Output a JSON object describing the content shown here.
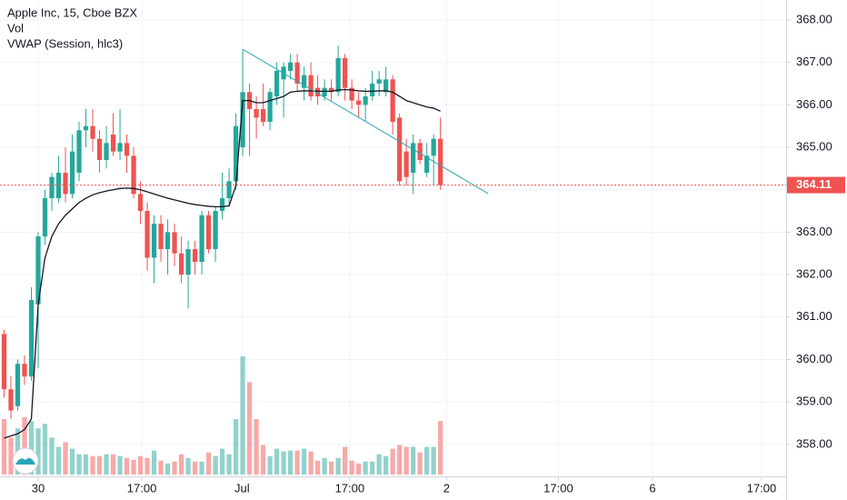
{
  "chart_data": {
    "type": "candlestick",
    "legend": [
      "Apple Inc, 15, Cboe BZX",
      "Vol",
      "VWAP (Session, hlc3)"
    ],
    "x": [
      -5,
      -4,
      -3,
      -2,
      -1,
      0,
      1,
      2,
      3,
      4,
      5,
      6,
      7,
      8,
      9,
      10,
      11,
      12,
      13,
      14,
      15,
      16,
      17,
      18,
      19,
      20,
      21,
      22,
      23,
      24,
      25,
      26,
      27,
      28,
      29,
      30,
      31,
      32,
      33,
      34,
      35,
      36,
      37,
      38,
      39,
      40,
      41,
      42,
      43,
      44,
      45,
      46,
      47,
      48,
      49,
      50,
      51,
      52,
      53,
      54,
      55,
      56,
      57,
      58,
      59
    ],
    "open": [
      360.6,
      359.3,
      358.9,
      359.9,
      359.6,
      361.3,
      362.9,
      363.8,
      363.8,
      364.4,
      363.9,
      364.4,
      365.4,
      365.5,
      365.2,
      364.7,
      365.3,
      364.9,
      365.1,
      364.8,
      363.9,
      363.5,
      362.4,
      363.2,
      362.6,
      363.0,
      362.5,
      362.0,
      362.6,
      362.3,
      363.4,
      362.6,
      363.5,
      363.8,
      364.2,
      365.0,
      366.3,
      365.9,
      365.9,
      365.6,
      366.2,
      366.6,
      366.8,
      367.0,
      366.4,
      366.7,
      366.4,
      366.2,
      366.4,
      366.3,
      367.1,
      366.4,
      366.1,
      366.0,
      366.2,
      366.5,
      366.3,
      366.6,
      365.7,
      364.9,
      364.4,
      365.1,
      364.4,
      364.8,
      365.2
    ],
    "high": [
      360.7,
      359.6,
      360.0,
      360.1,
      361.7,
      363.0,
      364.0,
      364.4,
      364.8,
      365.0,
      365.3,
      365.6,
      365.9,
      365.9,
      365.4,
      365.5,
      365.8,
      365.9,
      365.3,
      365.0,
      364.2,
      363.7,
      363.4,
      363.4,
      363.3,
      363.2,
      362.9,
      362.8,
      362.8,
      363.5,
      363.5,
      363.6,
      364.4,
      364.5,
      365.8,
      367.3,
      366.5,
      366.2,
      366.5,
      366.4,
      367.0,
      367.0,
      367.2,
      367.2,
      366.9,
      367.0,
      366.7,
      366.6,
      366.6,
      367.4,
      367.2,
      366.6,
      366.3,
      366.4,
      366.8,
      366.8,
      366.9,
      366.7,
      365.8,
      365.2,
      365.3,
      365.2,
      365.1,
      365.3,
      365.7
    ],
    "low": [
      359.1,
      358.6,
      358.8,
      359.4,
      359.5,
      359.8,
      362.7,
      363.5,
      363.7,
      363.7,
      363.8,
      364.2,
      365.0,
      364.9,
      364.4,
      364.5,
      364.8,
      364.7,
      364.4,
      363.8,
      363.2,
      362.1,
      361.8,
      362.3,
      362.0,
      362.2,
      361.8,
      361.2,
      362.0,
      362.0,
      362.5,
      362.3,
      363.3,
      363.6,
      364.0,
      364.8,
      364.8,
      365.2,
      365.5,
      365.4,
      366.0,
      365.7,
      366.6,
      366.3,
      366.1,
      366.1,
      366.0,
      366.1,
      366.1,
      366.2,
      366.1,
      365.9,
      365.7,
      365.6,
      366.1,
      366.2,
      366.2,
      365.3,
      364.1,
      364.1,
      363.9,
      364.6,
      364.3,
      364.1,
      364.0
    ],
    "close": [
      359.3,
      358.8,
      359.9,
      359.6,
      361.4,
      362.9,
      363.8,
      364.3,
      364.4,
      363.9,
      364.9,
      365.4,
      365.5,
      365.2,
      364.7,
      365.1,
      364.9,
      365.1,
      364.8,
      363.9,
      363.5,
      362.4,
      363.2,
      362.6,
      363.0,
      362.5,
      362.0,
      362.6,
      362.3,
      363.4,
      362.6,
      363.5,
      363.8,
      364.2,
      365.5,
      366.3,
      365.9,
      365.7,
      365.6,
      366.3,
      366.8,
      366.9,
      367.0,
      366.5,
      366.7,
      366.2,
      366.2,
      366.4,
      366.3,
      367.1,
      366.4,
      366.1,
      366.0,
      366.2,
      366.5,
      366.6,
      366.6,
      365.6,
      364.2,
      364.3,
      365.1,
      364.7,
      364.8,
      365.2,
      364.11
    ],
    "volume": [
      120,
      80,
      100,
      124,
      116,
      100,
      110,
      80,
      60,
      70,
      56,
      44,
      44,
      40,
      40,
      44,
      44,
      40,
      36,
      32,
      40,
      36,
      52,
      30,
      24,
      28,
      44,
      36,
      28,
      28,
      48,
      40,
      56,
      44,
      120,
      256,
      200,
      120,
      64,
      40,
      56,
      50,
      52,
      52,
      56,
      50,
      30,
      36,
      28,
      36,
      60,
      30,
      24,
      28,
      28,
      44,
      40,
      56,
      64,
      60,
      60,
      48,
      60,
      60,
      116
    ],
    "vwap": [
      358.15,
      358.2,
      358.25,
      358.35,
      358.6,
      361.3,
      362.4,
      362.9,
      363.2,
      363.4,
      363.55,
      363.7,
      363.8,
      363.88,
      363.93,
      363.97,
      364.0,
      364.03,
      364.04,
      364.03,
      364.0,
      363.95,
      363.9,
      363.85,
      363.8,
      363.76,
      363.72,
      363.68,
      363.65,
      363.63,
      363.61,
      363.6,
      363.6,
      363.62,
      364.1,
      366.1,
      366.1,
      366.05,
      366.05,
      366.1,
      366.15,
      366.2,
      366.3,
      366.32,
      366.33,
      366.33,
      366.32,
      366.32,
      366.32,
      366.35,
      366.36,
      366.35,
      366.33,
      366.32,
      366.32,
      366.33,
      366.33,
      366.3,
      366.2,
      366.1,
      366.05,
      366.0,
      365.95,
      365.92,
      365.85
    ],
    "trendline": {
      "x": [
        30,
        66
      ],
      "y": [
        367.31,
        363.91
      ]
    },
    "last_price": 364.11,
    "up_color": "#26a69a",
    "down_color": "#ef5350",
    "vwap_color": "#131722",
    "trend_color": "#2aa7b8",
    "xlim": [
      -5.6,
      109.7
    ],
    "ylim": [
      357.29,
      368.47
    ],
    "xticks": [
      {
        "value": 0,
        "label": "30"
      },
      {
        "value": 15.2,
        "label": "17:00"
      },
      {
        "value": 29.9,
        "label": "Jul"
      },
      {
        "value": 45.7,
        "label": "17:00"
      },
      {
        "value": 59.9,
        "label": "2"
      },
      {
        "value": 76.3,
        "label": "17:00"
      },
      {
        "value": 90.1,
        "label": "6"
      },
      {
        "value": 106.1,
        "label": "17:00"
      }
    ],
    "yticks": [
      {
        "value": 358,
        "label": "358.00"
      },
      {
        "value": 359,
        "label": "359.00"
      },
      {
        "value": 360,
        "label": "360.00"
      },
      {
        "value": 361,
        "label": "361.00"
      },
      {
        "value": 362,
        "label": "362.00"
      },
      {
        "value": 363,
        "label": "363.00"
      },
      {
        "value": 364,
        "label": "364.00"
      },
      {
        "value": 365,
        "label": "365.00"
      },
      {
        "value": 366,
        "label": "366.00"
      },
      {
        "value": 367,
        "label": "367.00"
      },
      {
        "value": 368,
        "label": "368.00"
      }
    ],
    "grid": true
  }
}
